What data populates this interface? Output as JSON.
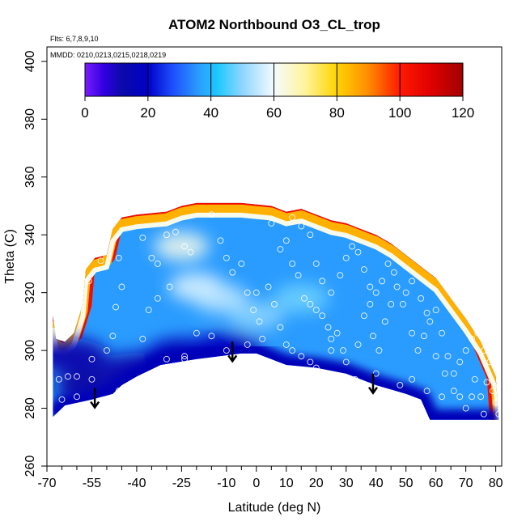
{
  "chart_data": {
    "type": "heatmap",
    "title": "ATOM2 Northbound O3_CL_trop",
    "flights_label": "Flts: 6,7,8,9,10",
    "dates_label": "MMDD: 0210,0213,0215,0218,0219",
    "xlabel": "Latitude (deg N)",
    "ylabel": "Theta (C)",
    "xlim": [
      -70,
      82
    ],
    "ylim": [
      260,
      405
    ],
    "x_ticks": [
      -70,
      -55,
      -40,
      -25,
      -10,
      0,
      10,
      20,
      30,
      40,
      50,
      60,
      70,
      80
    ],
    "x_minor_ticks": [
      -65,
      -60,
      -50,
      -45,
      -35,
      -30,
      -20,
      -15,
      -5,
      5,
      15,
      25,
      35,
      45,
      55,
      65,
      75
    ],
    "y_ticks": [
      260,
      280,
      300,
      320,
      340,
      360,
      380,
      400
    ],
    "colorbar": {
      "range": [
        0,
        120
      ],
      "ticks": [
        0,
        20,
        40,
        60,
        80,
        100,
        120
      ],
      "stops": [
        {
          "v": 0,
          "color": "#7b1cff"
        },
        {
          "v": 6,
          "color": "#2f00e0"
        },
        {
          "v": 12,
          "color": "#0a0aa8"
        },
        {
          "v": 20,
          "color": "#0000c8"
        },
        {
          "v": 28,
          "color": "#1e50ff"
        },
        {
          "v": 36,
          "color": "#2a9cff"
        },
        {
          "v": 42,
          "color": "#1ec8ff"
        },
        {
          "v": 50,
          "color": "#8ed6ff"
        },
        {
          "v": 60,
          "color": "#f4fbff"
        },
        {
          "v": 70,
          "color": "#fff49a"
        },
        {
          "v": 80,
          "color": "#ffd400"
        },
        {
          "v": 90,
          "color": "#ff8c00"
        },
        {
          "v": 100,
          "color": "#ff1a00"
        },
        {
          "v": 110,
          "color": "#e00000"
        },
        {
          "v": 120,
          "color": "#a00000"
        }
      ]
    },
    "field": {
      "upper_edge": [
        [
          -68,
          312
        ],
        [
          -67,
          304
        ],
        [
          -64,
          303
        ],
        [
          -61,
          306
        ],
        [
          -58,
          316
        ],
        [
          -57,
          328
        ],
        [
          -54,
          332
        ],
        [
          -50,
          333
        ],
        [
          -48,
          342
        ],
        [
          -45,
          346
        ],
        [
          -40,
          347
        ],
        [
          -30,
          348
        ],
        [
          -25,
          350
        ],
        [
          -20,
          351
        ],
        [
          -5,
          351
        ],
        [
          5,
          350
        ],
        [
          10,
          348
        ],
        [
          15,
          349
        ],
        [
          25,
          345
        ],
        [
          30,
          344
        ],
        [
          35,
          342
        ],
        [
          40,
          340
        ],
        [
          45,
          337
        ],
        [
          50,
          333
        ],
        [
          55,
          329
        ],
        [
          60,
          325
        ],
        [
          65,
          318
        ],
        [
          70,
          311
        ],
        [
          75,
          303
        ],
        [
          80,
          291
        ],
        [
          81,
          276
        ]
      ],
      "lower_edge": [
        [
          -68,
          277
        ],
        [
          -64,
          281
        ],
        [
          -55,
          283
        ],
        [
          -48,
          285
        ],
        [
          -45,
          288
        ],
        [
          -40,
          291
        ],
        [
          -32,
          295
        ],
        [
          -20,
          297
        ],
        [
          -5,
          299
        ],
        [
          0,
          299
        ],
        [
          10,
          295
        ],
        [
          20,
          294
        ],
        [
          30,
          292
        ],
        [
          40,
          288
        ],
        [
          50,
          285
        ],
        [
          55,
          283
        ],
        [
          58,
          276
        ],
        [
          81,
          276
        ]
      ],
      "hot_rim_top": 342,
      "low_ozone_blobs": [
        {
          "lat": -55,
          "theta": 287,
          "o3": 12
        },
        {
          "lat": -40,
          "theta": 293,
          "o3": 14
        },
        {
          "lat": -25,
          "theta": 298,
          "o3": 16
        },
        {
          "lat": -10,
          "theta": 300,
          "o3": 18
        },
        {
          "lat": -62,
          "theta": 298,
          "o3": 14
        }
      ],
      "high_ozone_blobs": [
        {
          "lat": -20,
          "theta": 322,
          "o3": 58
        },
        {
          "lat": -12,
          "theta": 318,
          "o3": 55
        },
        {
          "lat": -25,
          "theta": 336,
          "o3": 62
        },
        {
          "lat": 0,
          "theta": 312,
          "o3": 50
        },
        {
          "lat": 15,
          "theta": 318,
          "o3": 48
        }
      ]
    },
    "descent_arrows_lat": [
      -54,
      -8,
      39
    ],
    "sample_points": [
      [
        -66,
        290
      ],
      [
        -63,
        291
      ],
      [
        -60,
        291
      ],
      [
        -65,
        283
      ],
      [
        -60,
        284
      ],
      [
        -55,
        297
      ],
      [
        -55,
        290
      ],
      [
        -46,
        286
      ],
      [
        -56,
        324
      ],
      [
        -52,
        331
      ],
      [
        -46,
        332
      ],
      [
        -45,
        322
      ],
      [
        -47,
        315
      ],
      [
        -48,
        305
      ],
      [
        -50,
        300
      ],
      [
        -38,
        339
      ],
      [
        -35,
        332
      ],
      [
        -33,
        330
      ],
      [
        -30,
        340
      ],
      [
        -27,
        341
      ],
      [
        -24,
        336
      ],
      [
        -22,
        334
      ],
      [
        -29,
        322
      ],
      [
        -33,
        318
      ],
      [
        -36,
        314
      ],
      [
        -38,
        304
      ],
      [
        -30,
        297
      ],
      [
        -24,
        297
      ],
      [
        -24,
        298
      ],
      [
        -20,
        306
      ],
      [
        -15,
        347
      ],
      [
        -12,
        338
      ],
      [
        -10,
        332
      ],
      [
        -8,
        327
      ],
      [
        -5,
        330
      ],
      [
        -3,
        320
      ],
      [
        -1,
        314
      ],
      [
        0,
        320
      ],
      [
        1,
        310
      ],
      [
        2,
        304
      ],
      [
        -3,
        302
      ],
      [
        -10,
        300
      ],
      [
        -15,
        305
      ],
      [
        5,
        344
      ],
      [
        8,
        335
      ],
      [
        10,
        338
      ],
      [
        12,
        330
      ],
      [
        14,
        326
      ],
      [
        16,
        318
      ],
      [
        18,
        316
      ],
      [
        20,
        314
      ],
      [
        22,
        312
      ],
      [
        24,
        308
      ],
      [
        25,
        304
      ],
      [
        27,
        306
      ],
      [
        29,
        300
      ],
      [
        30,
        296
      ],
      [
        34,
        302
      ],
      [
        36,
        312
      ],
      [
        38,
        316
      ],
      [
        39,
        305
      ],
      [
        41,
        300
      ],
      [
        43,
        310
      ],
      [
        45,
        316
      ],
      [
        47,
        322
      ],
      [
        49,
        316
      ],
      [
        52,
        306
      ],
      [
        54,
        300
      ],
      [
        56,
        305
      ],
      [
        58,
        310
      ],
      [
        60,
        314
      ],
      [
        62,
        306
      ],
      [
        64,
        298
      ],
      [
        66,
        292
      ],
      [
        68,
        296
      ],
      [
        70,
        300
      ],
      [
        72,
        304
      ],
      [
        74,
        306
      ],
      [
        76,
        300
      ],
      [
        78,
        296
      ],
      [
        79,
        286
      ],
      [
        80,
        282
      ],
      [
        81,
        278
      ],
      [
        12,
        346
      ],
      [
        15,
        343
      ],
      [
        18,
        340
      ],
      [
        20,
        330
      ],
      [
        22,
        324
      ],
      [
        25,
        320
      ],
      [
        28,
        326
      ],
      [
        30,
        332
      ],
      [
        32,
        336
      ],
      [
        34,
        334
      ],
      [
        36,
        328
      ],
      [
        38,
        322
      ],
      [
        40,
        320
      ],
      [
        42,
        324
      ],
      [
        44,
        330
      ],
      [
        46,
        327
      ],
      [
        50,
        320
      ],
      [
        52,
        324
      ],
      [
        55,
        318
      ],
      [
        57,
        313
      ],
      [
        60,
        298
      ],
      [
        63,
        292
      ],
      [
        66,
        286
      ],
      [
        68,
        284
      ],
      [
        70,
        280
      ],
      [
        73,
        290
      ],
      [
        75,
        284
      ],
      [
        77,
        289
      ],
      [
        4,
        322
      ],
      [
        6,
        316
      ],
      [
        8,
        308
      ],
      [
        10,
        302
      ],
      [
        12,
        300
      ],
      [
        15,
        298
      ],
      [
        18,
        296
      ],
      [
        20,
        294
      ],
      [
        25,
        300
      ],
      [
        33,
        290
      ],
      [
        40,
        292
      ],
      [
        48,
        288
      ],
      [
        52,
        290
      ],
      [
        57,
        286
      ],
      [
        62,
        284
      ],
      [
        72,
        284
      ],
      [
        76,
        278
      ]
    ]
  }
}
